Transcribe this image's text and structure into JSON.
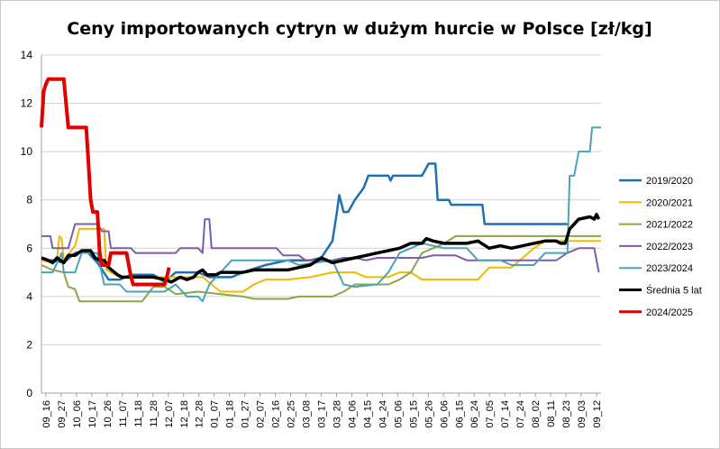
{
  "chart_data": {
    "type": "line",
    "title": "Ceny importowanych cytryn w dużym hurcie w Polsce [zł/kg]",
    "xlabel": "",
    "ylabel": "",
    "ylim": [
      0,
      14
    ],
    "yticks": [
      0,
      2,
      4,
      6,
      8,
      10,
      12,
      14
    ],
    "grid": "horizontal",
    "legend_position": "right",
    "x_tick_labels": [
      "09_16",
      "09_27",
      "10_06",
      "10_17",
      "10_26",
      "11_07",
      "11_18",
      "11_28",
      "12_07",
      "12_18",
      "12_28",
      "01_07",
      "01_18",
      "01_27",
      "02_07",
      "02_16",
      "02_25",
      "03_08",
      "03_17",
      "03_28",
      "04_06",
      "04_15",
      "04_24",
      "05_06",
      "05_15",
      "05_26",
      "06_06",
      "06_15",
      "06_24",
      "07_05",
      "07_14",
      "07_24",
      "08_02",
      "08_11",
      "08_23",
      "09_03",
      "09_12"
    ],
    "series": [
      {
        "name": "2019/2020",
        "color": "#1f6fb5",
        "width": 2.5,
        "points": [
          [
            0,
            5.5
          ],
          [
            5,
            5.5
          ],
          [
            10,
            5.4
          ],
          [
            15,
            5.8
          ],
          [
            20,
            5.9
          ],
          [
            25,
            5.4
          ],
          [
            30,
            4.7
          ],
          [
            35,
            4.7
          ],
          [
            40,
            4.9
          ],
          [
            50,
            4.9
          ],
          [
            55,
            4.6
          ],
          [
            60,
            5.0
          ],
          [
            70,
            5.0
          ],
          [
            75,
            4.8
          ],
          [
            85,
            4.8
          ],
          [
            90,
            5.0
          ],
          [
            100,
            5.3
          ],
          [
            110,
            5.5
          ],
          [
            120,
            5.5
          ],
          [
            125,
            5.6
          ],
          [
            130,
            6.3
          ],
          [
            132,
            7.5
          ],
          [
            133,
            8.2
          ],
          [
            135,
            7.5
          ],
          [
            137,
            7.5
          ],
          [
            140,
            8.0
          ],
          [
            144,
            8.5
          ],
          [
            146,
            9.0
          ],
          [
            155,
            9.0
          ],
          [
            156,
            8.8
          ],
          [
            157,
            9.0
          ],
          [
            170,
            9.0
          ],
          [
            173,
            9.5
          ],
          [
            176,
            9.5
          ],
          [
            177,
            8.0
          ],
          [
            182,
            8.0
          ],
          [
            183,
            7.8
          ],
          [
            197,
            7.8
          ],
          [
            198,
            7.0
          ],
          [
            235,
            7.0
          ]
        ]
      },
      {
        "name": "2020/2021",
        "color": "#f0b800",
        "width": 2,
        "points": [
          [
            0,
            5.5
          ],
          [
            5,
            5.4
          ],
          [
            7,
            5.6
          ],
          [
            8,
            6.5
          ],
          [
            9,
            6.4
          ],
          [
            10,
            5.5
          ],
          [
            15,
            6.1
          ],
          [
            17,
            6.8
          ],
          [
            28,
            6.8
          ],
          [
            29,
            5.1
          ],
          [
            35,
            4.8
          ],
          [
            60,
            4.8
          ],
          [
            72,
            4.8
          ],
          [
            80,
            4.2
          ],
          [
            90,
            4.2
          ],
          [
            95,
            4.5
          ],
          [
            100,
            4.7
          ],
          [
            110,
            4.7
          ],
          [
            120,
            4.8
          ],
          [
            130,
            5.0
          ],
          [
            140,
            5.0
          ],
          [
            145,
            4.8
          ],
          [
            155,
            4.8
          ],
          [
            160,
            5.0
          ],
          [
            165,
            5.0
          ],
          [
            170,
            4.7
          ],
          [
            195,
            4.7
          ],
          [
            200,
            5.2
          ],
          [
            210,
            5.2
          ],
          [
            215,
            5.6
          ],
          [
            220,
            6.0
          ],
          [
            225,
            6.3
          ],
          [
            235,
            6.3
          ],
          [
            240,
            6.3
          ],
          [
            250,
            6.3
          ]
        ]
      },
      {
        "name": "2021/2022",
        "color": "#8aa64a",
        "width": 2,
        "points": [
          [
            0,
            5.3
          ],
          [
            5,
            5.1
          ],
          [
            10,
            5.0
          ],
          [
            12,
            4.4
          ],
          [
            15,
            4.3
          ],
          [
            17,
            3.8
          ],
          [
            40,
            3.8
          ],
          [
            45,
            3.8
          ],
          [
            50,
            4.4
          ],
          [
            55,
            4.4
          ],
          [
            60,
            4.1
          ],
          [
            70,
            4.2
          ],
          [
            80,
            4.1
          ],
          [
            90,
            4.0
          ],
          [
            95,
            3.9
          ],
          [
            110,
            3.9
          ],
          [
            115,
            4.0
          ],
          [
            125,
            4.0
          ],
          [
            130,
            4.0
          ],
          [
            135,
            4.2
          ],
          [
            140,
            4.5
          ],
          [
            150,
            4.5
          ],
          [
            155,
            4.5
          ],
          [
            160,
            4.7
          ],
          [
            165,
            5.0
          ],
          [
            170,
            5.8
          ],
          [
            175,
            6.0
          ],
          [
            180,
            6.2
          ],
          [
            185,
            6.5
          ],
          [
            200,
            6.5
          ],
          [
            240,
            6.5
          ],
          [
            250,
            6.5
          ]
        ]
      },
      {
        "name": "2022/2023",
        "color": "#7b5ea7",
        "width": 2,
        "points": [
          [
            0,
            6.5
          ],
          [
            4,
            6.5
          ],
          [
            5,
            6.0
          ],
          [
            12,
            6.0
          ],
          [
            15,
            7.0
          ],
          [
            25,
            7.0
          ],
          [
            27,
            6.7
          ],
          [
            30,
            6.7
          ],
          [
            31,
            6.0
          ],
          [
            40,
            6.0
          ],
          [
            42,
            5.8
          ],
          [
            60,
            5.8
          ],
          [
            62,
            6.0
          ],
          [
            70,
            6.0
          ],
          [
            72,
            5.8
          ],
          [
            73,
            7.2
          ],
          [
            75,
            7.2
          ],
          [
            76,
            6.0
          ],
          [
            100,
            6.0
          ],
          [
            105,
            6.0
          ],
          [
            108,
            5.7
          ],
          [
            115,
            5.7
          ],
          [
            118,
            5.5
          ],
          [
            130,
            5.5
          ],
          [
            135,
            5.6
          ],
          [
            140,
            5.6
          ],
          [
            145,
            5.5
          ],
          [
            150,
            5.6
          ],
          [
            160,
            5.6
          ],
          [
            170,
            5.6
          ],
          [
            175,
            5.7
          ],
          [
            185,
            5.7
          ],
          [
            190,
            5.5
          ],
          [
            210,
            5.5
          ],
          [
            230,
            5.5
          ],
          [
            235,
            5.8
          ],
          [
            240,
            6.0
          ],
          [
            247,
            6.0
          ],
          [
            249,
            5.0
          ]
        ]
      },
      {
        "name": "2023/2024",
        "color": "#4ca3b5",
        "width": 2,
        "points": [
          [
            0,
            5.0
          ],
          [
            5,
            5.0
          ],
          [
            9,
            5.8
          ],
          [
            10,
            5.0
          ],
          [
            15,
            5.0
          ],
          [
            18,
            5.8
          ],
          [
            25,
            5.8
          ],
          [
            28,
            4.5
          ],
          [
            35,
            4.5
          ],
          [
            38,
            4.2
          ],
          [
            55,
            4.2
          ],
          [
            60,
            4.5
          ],
          [
            65,
            4.0
          ],
          [
            70,
            4.0
          ],
          [
            72,
            3.8
          ],
          [
            75,
            4.5
          ],
          [
            80,
            5.0
          ],
          [
            85,
            5.5
          ],
          [
            110,
            5.5
          ],
          [
            115,
            5.3
          ],
          [
            130,
            5.5
          ],
          [
            135,
            4.5
          ],
          [
            140,
            4.4
          ],
          [
            150,
            4.5
          ],
          [
            155,
            5.0
          ],
          [
            160,
            5.8
          ],
          [
            170,
            6.2
          ],
          [
            180,
            6.0
          ],
          [
            190,
            6.0
          ],
          [
            195,
            5.5
          ],
          [
            200,
            5.5
          ],
          [
            205,
            5.5
          ],
          [
            210,
            5.3
          ],
          [
            220,
            5.3
          ],
          [
            225,
            5.8
          ],
          [
            235,
            5.8
          ],
          [
            236,
            9.0
          ],
          [
            238,
            9.0
          ],
          [
            240,
            10.0
          ],
          [
            245,
            10.0
          ],
          [
            246,
            11.0
          ],
          [
            250,
            11.0
          ]
        ]
      },
      {
        "name": "Średnia 5 lat",
        "color": "#000000",
        "width": 3.5,
        "points": [
          [
            0,
            5.6
          ],
          [
            3,
            5.5
          ],
          [
            5,
            5.4
          ],
          [
            7,
            5.6
          ],
          [
            10,
            5.4
          ],
          [
            12,
            5.7
          ],
          [
            15,
            5.7
          ],
          [
            18,
            5.9
          ],
          [
            22,
            5.9
          ],
          [
            24,
            5.6
          ],
          [
            26,
            5.5
          ],
          [
            28,
            5.5
          ],
          [
            30,
            5.2
          ],
          [
            34,
            4.9
          ],
          [
            36,
            4.8
          ],
          [
            40,
            4.8
          ],
          [
            45,
            4.8
          ],
          [
            50,
            4.8
          ],
          [
            55,
            4.7
          ],
          [
            58,
            4.6
          ],
          [
            62,
            4.8
          ],
          [
            65,
            4.7
          ],
          [
            68,
            4.8
          ],
          [
            70,
            5.0
          ],
          [
            72,
            5.1
          ],
          [
            74,
            4.9
          ],
          [
            78,
            4.9
          ],
          [
            80,
            5.0
          ],
          [
            85,
            5.0
          ],
          [
            90,
            5.0
          ],
          [
            95,
            5.1
          ],
          [
            100,
            5.1
          ],
          [
            110,
            5.1
          ],
          [
            115,
            5.2
          ],
          [
            120,
            5.3
          ],
          [
            125,
            5.6
          ],
          [
            130,
            5.4
          ],
          [
            135,
            5.5
          ],
          [
            140,
            5.6
          ],
          [
            145,
            5.7
          ],
          [
            150,
            5.8
          ],
          [
            155,
            5.9
          ],
          [
            160,
            6.0
          ],
          [
            165,
            6.2
          ],
          [
            170,
            6.2
          ],
          [
            172,
            6.4
          ],
          [
            175,
            6.3
          ],
          [
            180,
            6.2
          ],
          [
            190,
            6.2
          ],
          [
            195,
            6.3
          ],
          [
            200,
            6.0
          ],
          [
            205,
            6.1
          ],
          [
            210,
            6.0
          ],
          [
            215,
            6.1
          ],
          [
            220,
            6.2
          ],
          [
            225,
            6.3
          ],
          [
            230,
            6.3
          ],
          [
            232,
            6.2
          ],
          [
            234,
            6.2
          ],
          [
            236,
            6.8
          ],
          [
            238,
            7.0
          ],
          [
            240,
            7.2
          ],
          [
            245,
            7.3
          ],
          [
            247,
            7.2
          ],
          [
            248,
            7.4
          ],
          [
            249,
            7.2
          ]
        ]
      },
      {
        "name": "2024/2025",
        "color": "#e00000",
        "width": 4,
        "points": [
          [
            0,
            11.0
          ],
          [
            1,
            12.5
          ],
          [
            2,
            12.8
          ],
          [
            3,
            13.0
          ],
          [
            10,
            13.0
          ],
          [
            11,
            12.0
          ],
          [
            12,
            11.0
          ],
          [
            20,
            11.0
          ],
          [
            21,
            9.5
          ],
          [
            22,
            8.0
          ],
          [
            23,
            7.5
          ],
          [
            25,
            7.5
          ],
          [
            26,
            5.8
          ],
          [
            27,
            5.3
          ],
          [
            30,
            5.3
          ],
          [
            31,
            5.8
          ],
          [
            38,
            5.8
          ],
          [
            40,
            4.8
          ],
          [
            41,
            4.5
          ],
          [
            55,
            4.5
          ],
          [
            56,
            4.8
          ],
          [
            57,
            5.2
          ]
        ]
      }
    ]
  }
}
